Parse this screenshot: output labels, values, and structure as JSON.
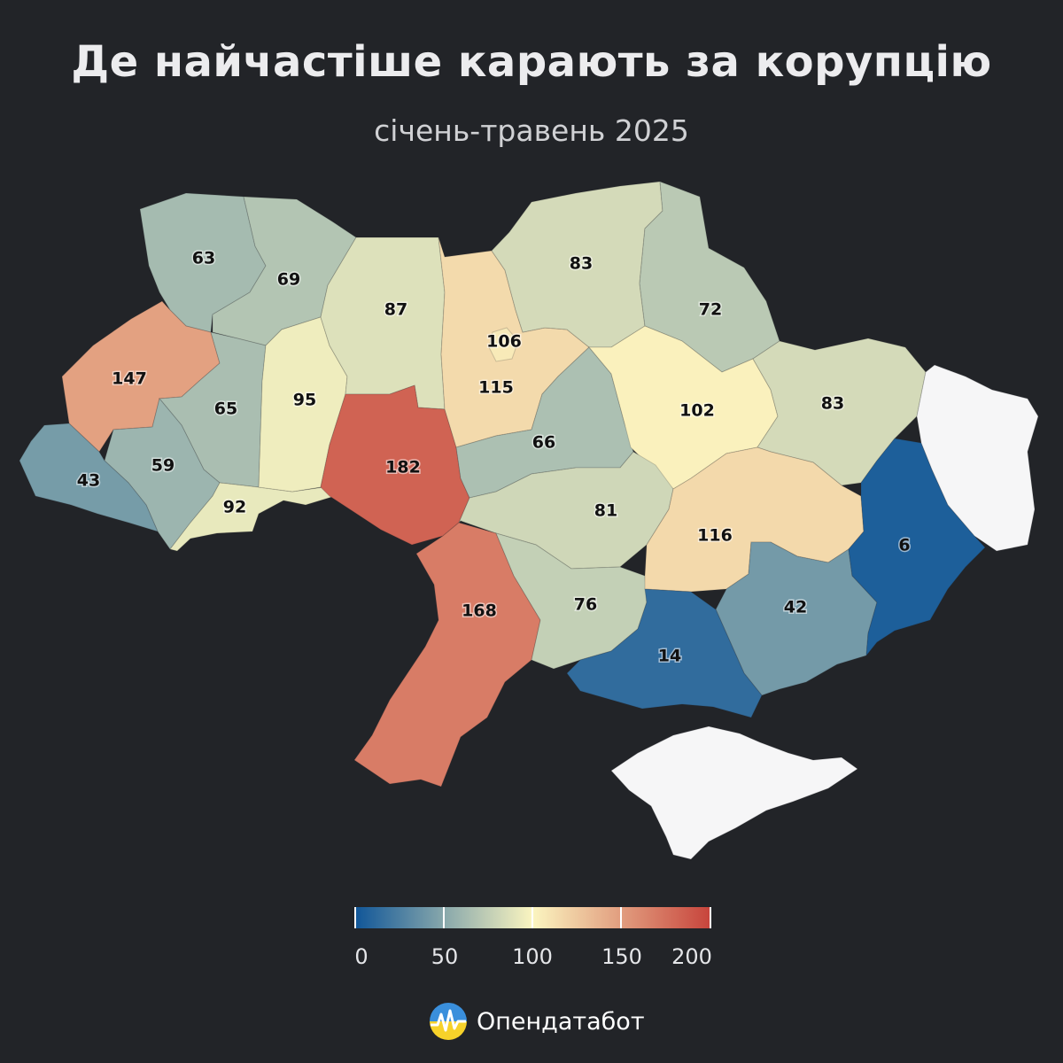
{
  "header": {
    "title": "Де найчастіше карають за корупцію",
    "subtitle": "січень-травень 2025"
  },
  "map": {
    "scale": {
      "min": 0,
      "max": 200,
      "ticks": [
        0,
        50,
        100,
        150,
        200
      ]
    },
    "colors": {
      "low": "#0f5598",
      "mid": "#fbf5c0",
      "high": "#c7433b",
      "no_data": "#f6f6f7"
    },
    "regions": [
      {
        "id": "volyn",
        "value": 63
      },
      {
        "id": "rivne",
        "value": 69
      },
      {
        "id": "lviv",
        "value": 147
      },
      {
        "id": "ternopil",
        "value": 65
      },
      {
        "id": "ivano-frankivsk",
        "value": 59
      },
      {
        "id": "zakarpattia",
        "value": 43
      },
      {
        "id": "chernivtsi",
        "value": 92
      },
      {
        "id": "khmelnytskyi",
        "value": 95
      },
      {
        "id": "zhytomyr",
        "value": 87
      },
      {
        "id": "vinnytsia",
        "value": 182
      },
      {
        "id": "kyiv-oblast",
        "value": 115
      },
      {
        "id": "kyiv-city",
        "value": 106
      },
      {
        "id": "chernihiv",
        "value": 83
      },
      {
        "id": "sumy",
        "value": 72
      },
      {
        "id": "cherkasy",
        "value": 66
      },
      {
        "id": "poltava",
        "value": 102
      },
      {
        "id": "kharkiv",
        "value": 83
      },
      {
        "id": "kirovohrad",
        "value": 81
      },
      {
        "id": "odesa",
        "value": 168
      },
      {
        "id": "mykolaiv",
        "value": 76
      },
      {
        "id": "dnipropetrovsk",
        "value": 116
      },
      {
        "id": "zaporizhzhia",
        "value": 42
      },
      {
        "id": "kherson",
        "value": 14
      },
      {
        "id": "donetsk",
        "value": 6
      },
      {
        "id": "luhansk",
        "value": null
      },
      {
        "id": "crimea",
        "value": null
      }
    ]
  },
  "legend": {
    "tick_labels": [
      "0",
      "50",
      "100",
      "150",
      "200"
    ]
  },
  "brand": {
    "name": "Опендатабот",
    "logo_icon": "opendatabot-logo-icon"
  }
}
